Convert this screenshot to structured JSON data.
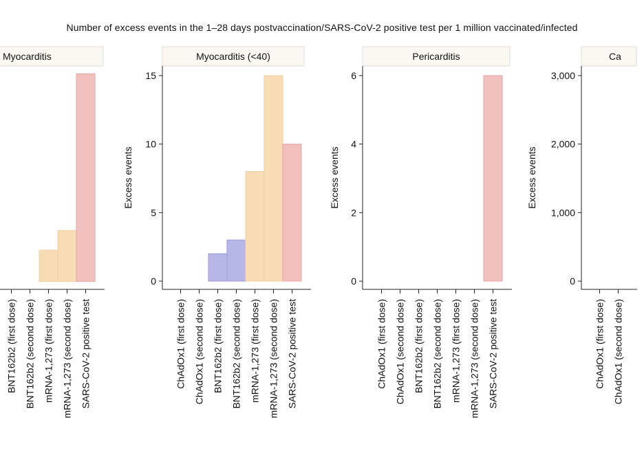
{
  "title": "Number of excess events in the 1–28 days postvaccination/SARS-CoV-2 positive test per 1 million vaccinated/infected",
  "colors": {
    "ChAdOx1": "#d3d3f0",
    "BNT162b2": "#b8b6e6",
    "mRNA-1,273": "#f8dcb6",
    "SARS-CoV-2": "#f2bfbf",
    "ChAdOx1_edge": "#a9a9d8",
    "BNT162b2_edge": "#9c9ad8",
    "mRNA-1,273_edge": "#f0cfa0",
    "SARS-CoV-2_edge": "#e6a6a6"
  },
  "chart_data": [
    {
      "type": "bar",
      "title": "Myocarditis",
      "ylabel": "",
      "categories": [
        "BNT162b2 (first dose)",
        "BNT162b2 (second dose)",
        "mRNA-1,273 (first dose)",
        "mRNA-1,273 (second dose)",
        "SARS-CoV-2 positive test"
      ],
      "groups": [
        "BNT162b2",
        "BNT162b2",
        "mRNA-1,273",
        "mRNA-1,273",
        "SARS-CoV-2"
      ],
      "values": [
        0,
        0,
        0.8,
        1.3,
        5.3
      ],
      "ylim": [
        -0.2,
        5.5
      ],
      "yticks": [],
      "ytick_labels": []
    },
    {
      "type": "bar",
      "title": "Myocarditis (<40)",
      "ylabel": "Excess events",
      "categories": [
        "ChAdOx1 (first dose)",
        "ChAdOx1 (second dose)",
        "BNT162b2 (first dose)",
        "BNT162b2 (second dose)",
        "mRNA-1,273 (first dose)",
        "mRNA-1,273 (second dose)",
        "SARS-CoV-2 positive test"
      ],
      "groups": [
        "ChAdOx1",
        "ChAdOx1",
        "BNT162b2",
        "BNT162b2",
        "mRNA-1,273",
        "mRNA-1,273",
        "SARS-CoV-2"
      ],
      "values": [
        0,
        0,
        2,
        3,
        8,
        15,
        10
      ],
      "ylim": [
        -0.6,
        15.7
      ],
      "yticks": [
        0,
        5,
        10,
        15
      ],
      "ytick_labels": [
        "0",
        "5",
        "10",
        "15"
      ]
    },
    {
      "type": "bar",
      "title": "Pericarditis",
      "ylabel": "Excess events",
      "categories": [
        "ChAdOx1 (first dose)",
        "ChAdOx1 (second dose)",
        "BNT162b2 (first dose)",
        "BNT162b2 (second dose)",
        "mRNA-1,273 (first dose)",
        "mRNA-1,273 (second dose)",
        "SARS-CoV-2 positive test"
      ],
      "groups": [
        "ChAdOx1",
        "ChAdOx1",
        "BNT162b2",
        "BNT162b2",
        "mRNA-1,273",
        "mRNA-1,273",
        "SARS-CoV-2"
      ],
      "values": [
        0,
        0,
        0,
        0,
        0,
        0,
        6
      ],
      "ylim": [
        -0.24,
        6.28
      ],
      "yticks": [
        0,
        2,
        4,
        6
      ],
      "ytick_labels": [
        "0",
        "2",
        "4",
        "6"
      ]
    },
    {
      "type": "bar",
      "title": "Ca",
      "ylabel": "Excess events",
      "categories": [
        "ChAdOx1 (first dose)",
        "ChAdOx1 (second dose)"
      ],
      "groups": [
        "ChAdOx1",
        "ChAdOx1"
      ],
      "values": [
        0,
        0
      ],
      "ylim": [
        -120,
        3140
      ],
      "yticks": [
        0,
        1000,
        2000,
        3000
      ],
      "ytick_labels": [
        "0",
        "1,000",
        "2,000",
        "3,000"
      ]
    }
  ]
}
